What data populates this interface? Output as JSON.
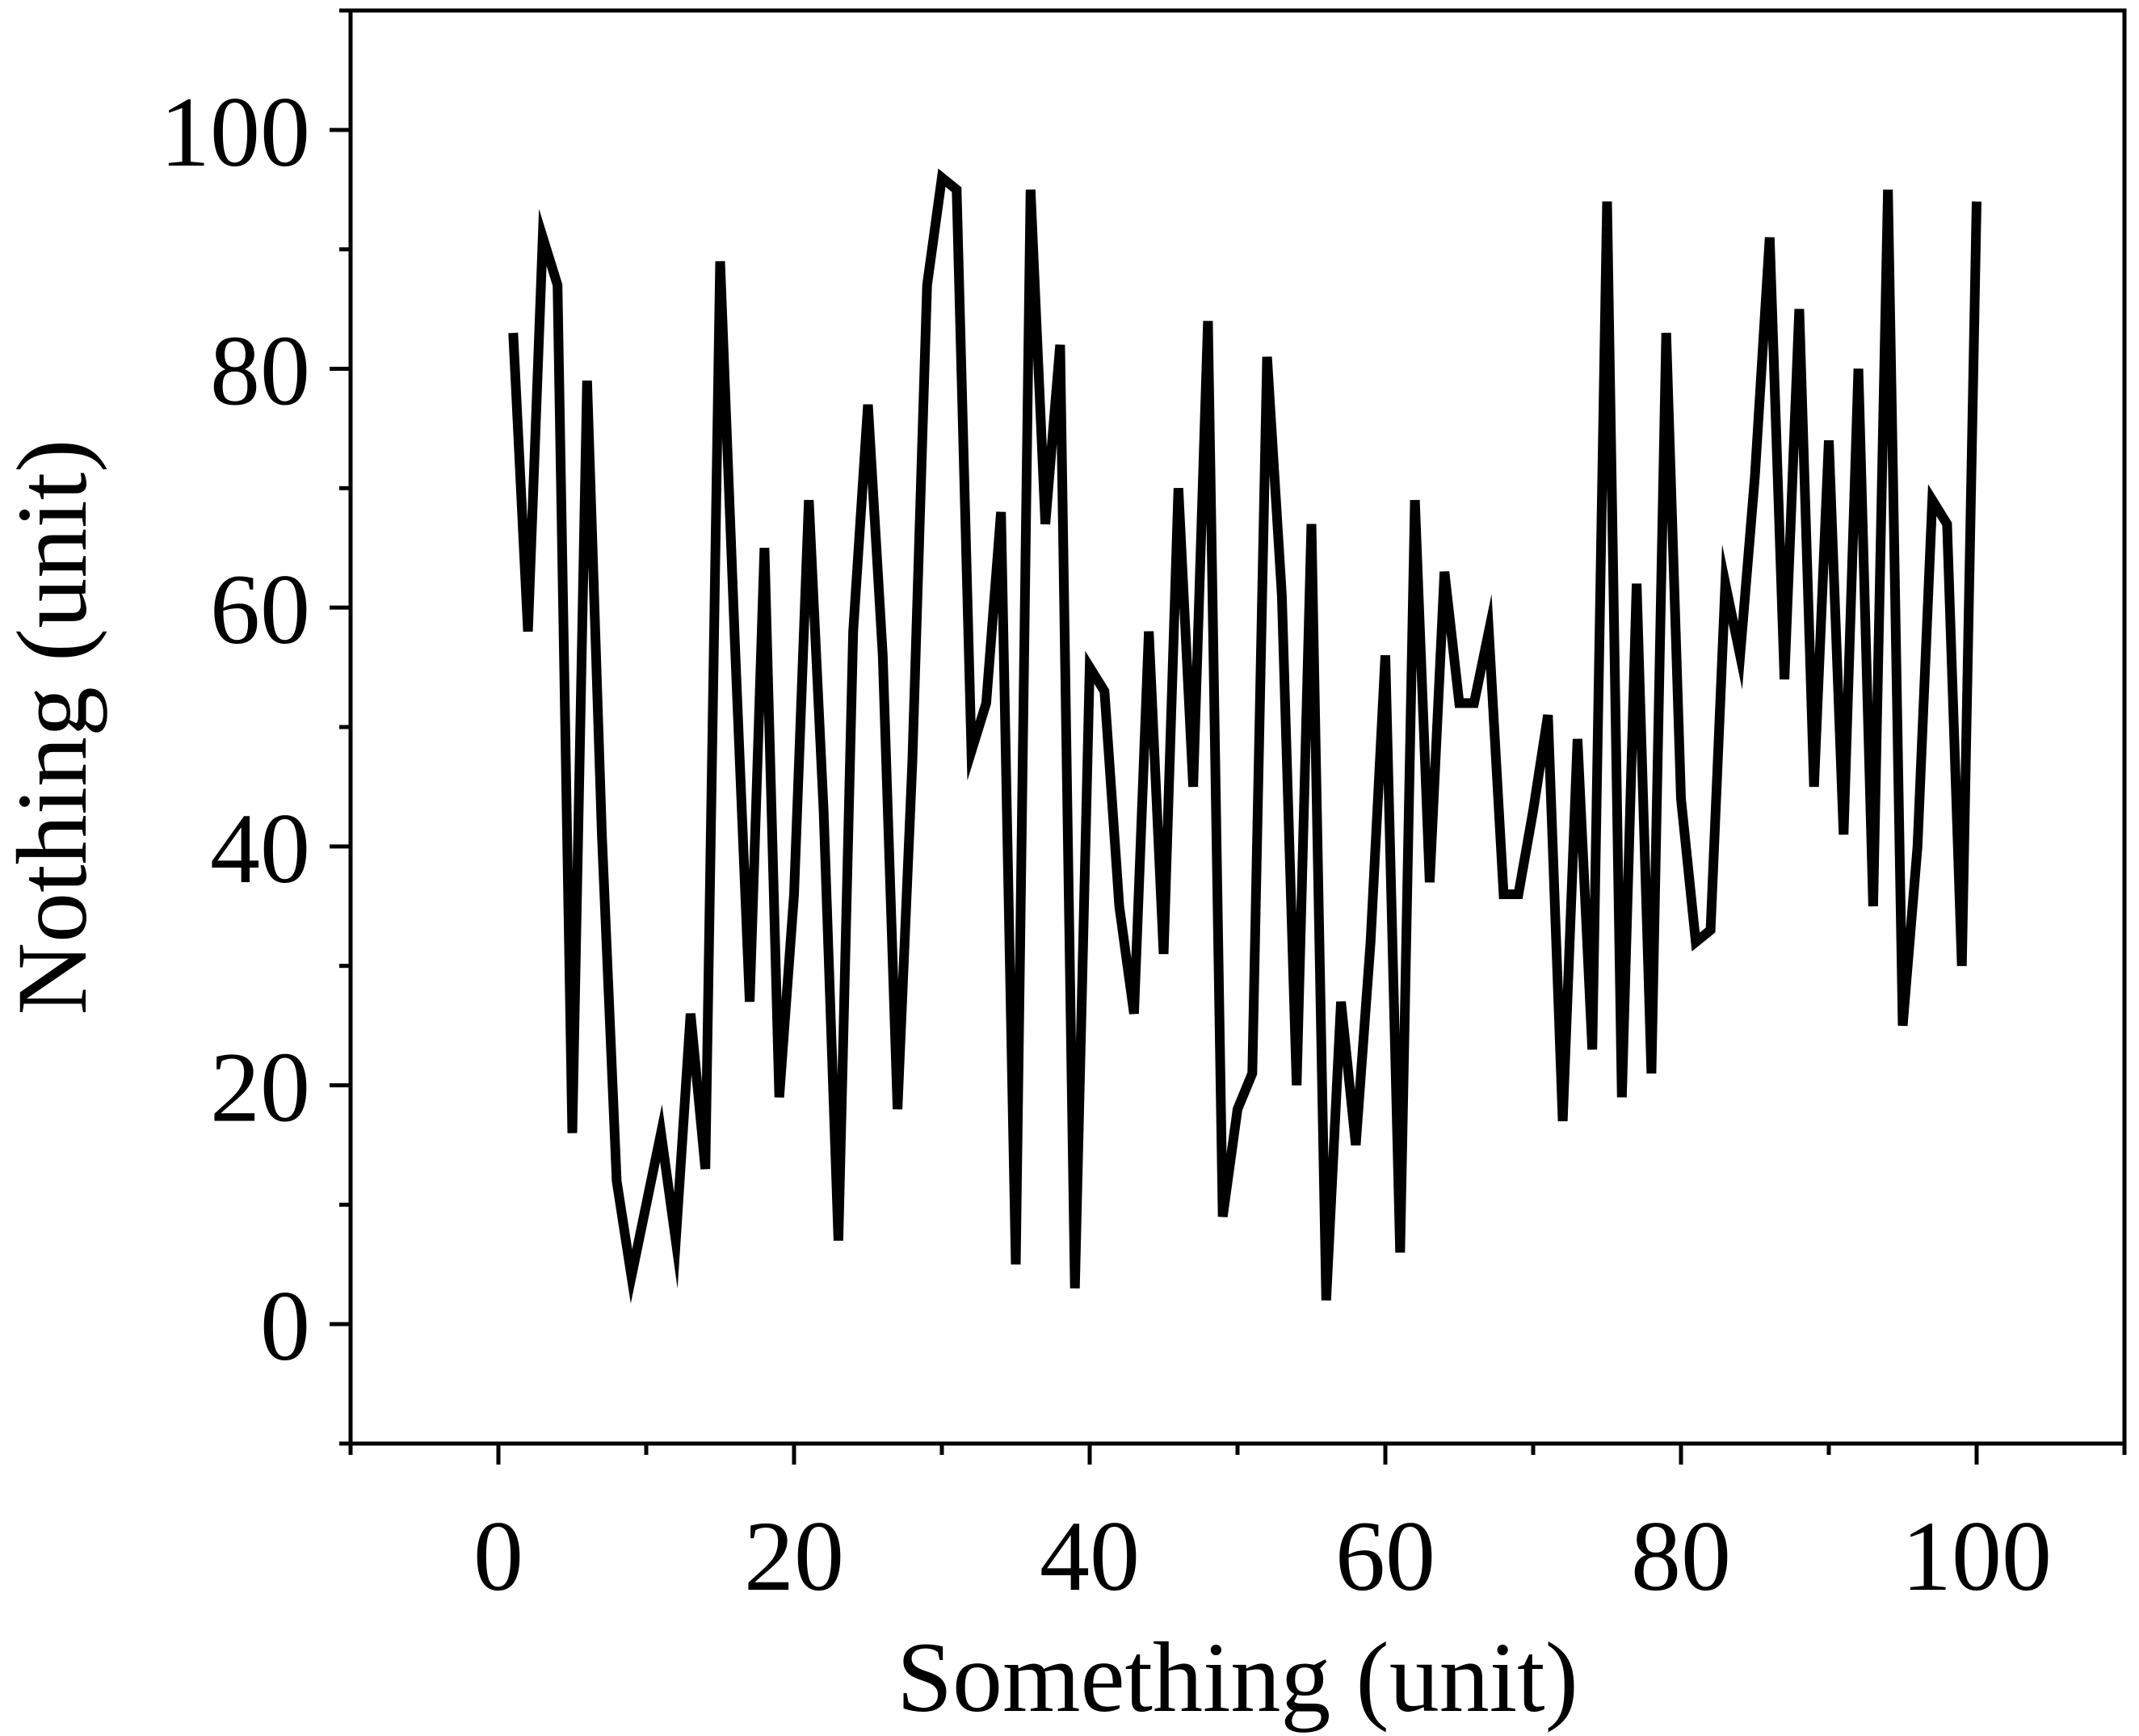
{
  "chart_data": {
    "type": "line",
    "title": "",
    "xlabel": "Something (unit)",
    "ylabel": "Nothing (unit)",
    "xlim": [
      -10,
      110
    ],
    "ylim": [
      -10,
      110
    ],
    "x_major_ticks": [
      0,
      20,
      40,
      60,
      80,
      100
    ],
    "x_minor_ticks": [
      -10,
      10,
      30,
      50,
      70,
      90,
      110
    ],
    "y_major_ticks": [
      0,
      20,
      40,
      60,
      80,
      100
    ],
    "y_minor_ticks": [
      -10,
      10,
      30,
      50,
      70,
      90,
      110
    ],
    "x_tick_labels": [
      "0",
      "20",
      "40",
      "60",
      "80",
      "100"
    ],
    "y_tick_labels": [
      "0",
      "20",
      "40",
      "60",
      "80",
      "100"
    ],
    "grid": false,
    "legend": "none",
    "line_color": "#000000",
    "series": [
      {
        "x": [
          1,
          2,
          3,
          4,
          5,
          6,
          7,
          8,
          9,
          10,
          11,
          12,
          13,
          14,
          15,
          16,
          17,
          18,
          19,
          20,
          21,
          22,
          23,
          24,
          25,
          26,
          27,
          28,
          29,
          30,
          31,
          32,
          33,
          34,
          35,
          36,
          37,
          38,
          39,
          40,
          41,
          42,
          43,
          44,
          45,
          46,
          47,
          48,
          49,
          50,
          51,
          52,
          53,
          54,
          55,
          56,
          57,
          58,
          59,
          60,
          61,
          62,
          63,
          64,
          65,
          66,
          67,
          68,
          69,
          70,
          71,
          72,
          73,
          74,
          75,
          76,
          77,
          78,
          79,
          80,
          81,
          82,
          83,
          84,
          85,
          86,
          87,
          88,
          89,
          90,
          91,
          92,
          93,
          94,
          95,
          96,
          97,
          98,
          99,
          100
        ],
        "values": [
          83,
          58,
          91,
          87,
          16,
          79,
          41,
          12,
          4,
          10,
          16,
          7,
          26,
          13,
          89,
          57,
          27,
          65,
          19,
          36,
          69,
          43,
          7,
          58,
          77,
          56,
          18,
          47,
          87,
          96,
          95,
          48,
          52,
          68,
          5,
          95,
          67,
          82,
          3,
          55,
          53,
          35,
          26,
          58,
          31,
          70,
          45,
          84,
          9,
          18,
          21,
          81,
          61,
          20,
          67,
          2,
          27,
          15,
          32,
          56,
          6,
          69,
          37,
          63,
          52,
          52,
          58,
          36,
          36,
          43,
          51,
          17,
          49,
          23,
          94,
          19,
          62,
          21,
          83,
          44,
          32,
          33,
          62,
          56,
          71,
          91,
          54,
          85,
          45,
          74,
          41,
          80,
          35,
          95,
          25,
          40,
          69,
          67,
          30,
          94
        ]
      }
    ]
  }
}
